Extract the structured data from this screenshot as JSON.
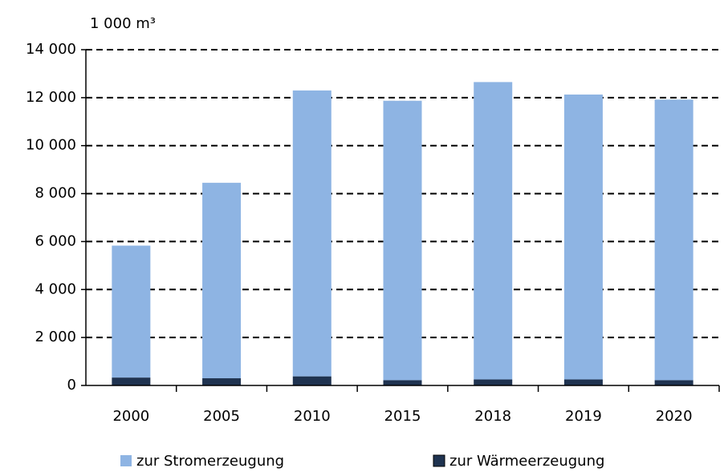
{
  "chart_data": {
    "type": "stacked_bar",
    "y_axis_label": "1 000 m³",
    "categories": [
      "2000",
      "2005",
      "2010",
      "2015",
      "2018",
      "2019",
      "2020"
    ],
    "series": [
      {
        "name": "zur Stromerzeugung",
        "color": "#8eb4e3",
        "values": [
          5500,
          8150,
          11920,
          11650,
          12400,
          11880,
          11700
        ]
      },
      {
        "name": "zur Wärmeerzeugung",
        "color": "#1f3350",
        "values": [
          330,
          300,
          380,
          220,
          250,
          250,
          220
        ]
      }
    ],
    "ylim": [
      0,
      14000
    ],
    "yticks": [
      0,
      {
        "value": 2000,
        "label": "2 000"
      },
      {
        "value": 4000,
        "label": "4 000"
      },
      {
        "value": 6000,
        "label": "6 000"
      },
      {
        "value": 8000,
        "label": "8 000"
      },
      {
        "value": 10000,
        "label": "10 000"
      },
      {
        "value": 12000,
        "label": "12 000"
      },
      {
        "value": 14000,
        "label": "14 000"
      }
    ],
    "grid": true
  }
}
